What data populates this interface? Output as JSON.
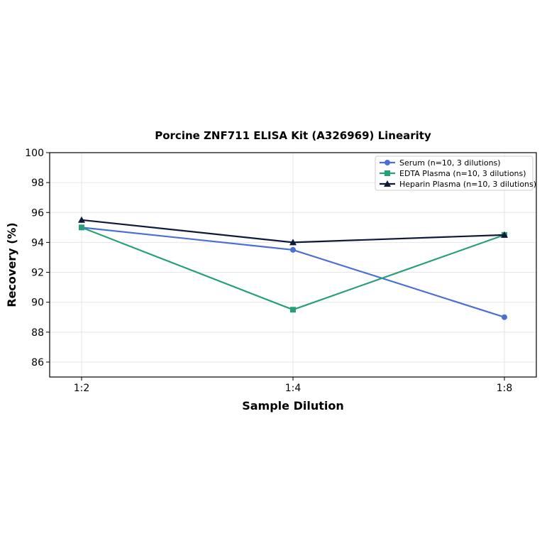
{
  "chart_data": {
    "type": "line",
    "title": "Porcine ZNF711 ELISA Kit (A326969) Linearity",
    "xlabel": "Sample Dilution",
    "ylabel": "Recovery (%)",
    "categories": [
      "1:2",
      "1:4",
      "1:8"
    ],
    "ylim": [
      85,
      100
    ],
    "yticks": [
      86,
      88,
      90,
      92,
      94,
      96,
      98,
      100
    ],
    "grid": true,
    "legend_position": "top-right",
    "series": [
      {
        "name": "Serum (n=10, 3 dilutions)",
        "values": [
          95.0,
          93.5,
          89.0
        ],
        "color": "#4a6fd6",
        "marker": "circle"
      },
      {
        "name": "EDTA Plasma (n=10, 3 dilutions)",
        "values": [
          95.0,
          89.5,
          94.5
        ],
        "color": "#25a07a",
        "marker": "square"
      },
      {
        "name": "Heparin Plasma (n=10, 3 dilutions)",
        "values": [
          95.5,
          94.0,
          94.5
        ],
        "color": "#0f1a3a",
        "marker": "triangle"
      }
    ]
  }
}
